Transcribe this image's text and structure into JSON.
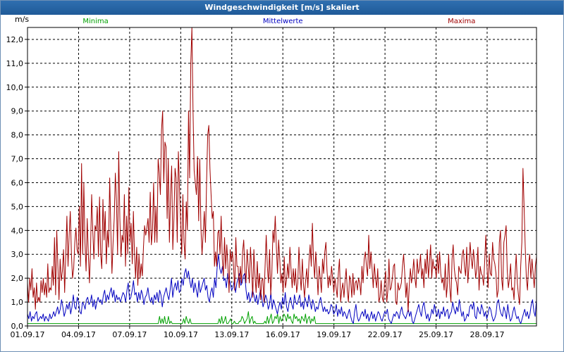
{
  "window": {
    "title": "Windgeschwindigkeit [m/s] skaliert"
  },
  "chart_data": {
    "type": "line",
    "title": "Windgeschwindigkeit [m/s] skaliert",
    "ylabel": "m/s",
    "xlabel": "",
    "ylim": [
      0,
      12.5
    ],
    "xlim_days": [
      0,
      29.9
    ],
    "grid": true,
    "y_ticks": [
      "0,0",
      "1,0",
      "2,0",
      "3,0",
      "4,0",
      "5,0",
      "6,0",
      "7,0",
      "8,0",
      "9,0",
      "10,0",
      "11,0",
      "12,0"
    ],
    "x_ticks": [
      "01.09.17",
      "04.09.17",
      "07.09.17",
      "10.09.17",
      "13.09.17",
      "16.09.17",
      "19.09.17",
      "22.09.17",
      "25.09.17",
      "28.09.17"
    ],
    "legend": [
      "Minima",
      "Mittelwerte",
      "Maxima"
    ],
    "legend_placement": "top",
    "colors": {
      "min": "#00a000",
      "avg": "#0000c0",
      "max": "#a00000"
    },
    "series": [
      {
        "name": "Maxima",
        "color": "#a00000",
        "values": [
          1.8,
          1.0,
          2.0,
          1.5,
          2.4,
          1.2,
          1.6,
          0.7,
          1.8,
          1.0,
          1.2,
          1.0,
          1.9,
          1.4,
          2.0,
          1.3,
          1.8,
          1.2,
          2.6,
          1.4,
          1.6,
          1.5,
          2.5,
          1.7,
          3.7,
          1.3,
          4.0,
          2.5,
          1.1,
          2.8,
          1.9,
          2.3,
          3.2,
          1.4,
          3.0,
          4.6,
          2.5,
          3.8,
          4.8,
          3.0,
          2.0,
          2.4,
          3.5,
          4.1,
          3.2,
          3.0,
          5.0,
          2.5,
          6.8,
          3.0,
          6.0,
          3.5,
          2.3,
          4.5,
          3.0,
          1.8,
          3.3,
          5.5,
          4.0,
          2.8,
          4.2,
          4.0,
          5.0,
          2.9,
          5.4,
          3.0,
          2.4,
          5.3,
          3.6,
          4.8,
          2.6,
          4.0,
          3.3,
          6.2,
          4.0,
          2.2,
          3.5,
          4.5,
          6.4,
          5.2,
          3.0,
          7.3,
          4.5,
          2.9,
          3.8,
          3.5,
          5.5,
          2.5,
          4.6,
          3.0,
          5.8,
          3.5,
          4.3,
          2.6,
          4.8,
          3.1,
          2.0,
          3.3,
          1.7,
          3.0,
          2.0,
          2.6,
          2.1,
          3.3,
          4.2,
          3.8,
          4.1,
          4.5,
          3.5,
          5.6,
          3.4,
          4.0,
          6.0,
          3.5,
          5.0,
          3.5,
          7.0,
          6.4,
          5.5,
          8.2,
          9.0,
          6.0,
          7.7,
          7.5,
          4.5,
          7.0,
          3.5,
          5.5,
          6.7,
          3.2,
          4.5,
          6.6,
          6.2,
          3.5,
          7.3,
          5.8,
          4.3,
          3.0,
          5.5,
          3.5,
          2.8,
          5.2,
          4.0,
          9.0,
          6.2,
          11.0,
          12.5,
          9.0,
          6.5,
          6.0,
          5.5,
          7.1,
          4.4,
          7.0,
          4.1,
          3.0,
          3.9,
          4.8,
          3.5,
          6.0,
          8.0,
          8.4,
          6.6,
          5.5,
          4.5,
          4.8,
          2.5,
          3.1,
          2.5,
          3.9,
          4.0,
          3.0,
          4.6,
          2.8,
          2.1,
          3.7,
          2.4,
          3.4,
          2.5,
          1.4,
          3.2,
          2.7,
          3.1,
          2.5,
          1.5,
          3.7,
          2.5,
          2.5,
          1.6,
          2.5,
          1.8,
          3.1,
          3.6,
          2.4,
          1.8,
          3.2,
          2.5,
          1.8,
          3.3,
          2.4,
          1.2,
          3.2,
          2.1,
          1.4,
          2.7,
          1.6,
          2.2,
          1.1,
          1.9,
          2.0,
          1.0,
          2.5,
          3.8,
          2.5,
          1.8,
          3.2,
          1.3,
          2.2,
          4.0,
          3.5,
          4.6,
          3.3,
          2.2,
          3.6,
          2.8,
          1.8,
          2.2,
          1.4,
          2.9,
          1.6,
          1.9,
          2.6,
          2.0,
          3.3,
          2.4,
          1.6,
          2.4,
          1.7,
          2.4,
          1.4,
          1.8,
          3.3,
          2.2,
          1.5,
          2.8,
          1.8,
          1.2,
          1.9,
          2.4,
          1.6,
          2.7,
          3.4,
          2.5,
          4.3,
          2.8,
          2.0,
          3.1,
          2.3,
          1.3,
          2.5,
          2.0,
          1.4,
          2.8,
          2.2,
          3.1,
          3.5,
          2.3,
          1.6,
          2.1,
          1.7,
          2.5,
          2.0,
          1.4,
          2.0,
          1.6,
          1.2,
          2.2,
          2.8,
          1.0,
          1.5,
          1.8,
          1.2,
          1.9,
          2.4,
          1.5,
          1.0,
          2.1,
          1.9,
          1.2,
          2.2,
          1.3,
          1.8,
          1.9,
          1.5,
          2.0,
          1.8,
          1.3,
          2.5,
          1.8,
          2.8,
          3.1,
          2.5,
          2.1,
          3.8,
          2.4,
          3.1,
          2.4,
          1.6,
          2.6,
          2.0,
          1.6,
          2.4,
          1.0,
          1.2,
          1.9,
          1.2,
          1.0,
          1.8,
          2.3,
          1.0,
          1.5,
          2.8,
          1.5,
          1.6,
          2.0,
          2.5,
          2.6,
          1.0,
          0.9,
          1.8,
          1.5,
          1.6,
          1.8,
          2.5,
          3.0,
          2.2,
          1.2,
          1.8,
          0.6,
          1.7,
          2.4,
          1.8,
          2.2,
          2.8,
          2.0,
          1.6,
          2.8,
          2.2,
          2.4,
          3.0,
          2.0,
          2.4,
          1.6,
          2.8,
          2.2,
          3.2,
          2.0,
          2.7,
          3.4,
          2.0,
          2.8,
          2.4,
          2.5,
          2.0,
          3.0,
          2.2,
          3.1,
          2.2,
          1.8,
          2.0,
          1.5,
          2.6,
          1.2,
          1.8,
          3.0,
          1.6,
          1.0,
          2.8,
          3.4,
          2.4,
          2.0,
          1.8,
          1.3,
          2.5,
          2.3,
          2.2,
          3.0,
          3.2,
          2.5,
          2.1,
          3.3,
          1.8,
          2.5,
          3.5,
          2.8,
          2.4,
          3.2,
          2.7,
          2.0,
          2.4,
          3.3,
          1.5,
          2.5,
          2.2,
          2.1,
          1.7,
          2.7,
          3.8,
          2.5,
          1.6,
          3.0,
          2.2,
          2.1,
          3.5,
          2.8,
          2.6,
          2.2,
          1.2,
          1.5,
          3.5,
          4.0,
          2.0,
          1.5,
          3.5,
          3.8,
          4.2,
          2.3,
          1.6,
          2.0,
          2.6,
          1.5,
          1.6,
          1.1,
          2.2,
          3.0,
          1.8,
          1.3,
          0.9,
          2.5,
          3.5,
          6.6,
          5.0,
          3.3,
          2.0,
          1.5,
          2.6,
          3.0,
          2.0,
          2.8,
          2.2,
          1.6,
          2.5,
          2.9
        ]
      },
      {
        "name": "Mittelwerte",
        "color": "#0000c0",
        "values": [
          0.5,
          0.3,
          0.6,
          0.2,
          0.4,
          0.3,
          0.5,
          0.6,
          0.2,
          0.3,
          0.4,
          0.3,
          0.5,
          0.2,
          0.4,
          0.3,
          0.2,
          0.5,
          0.3,
          0.4,
          0.6,
          0.4,
          0.6,
          0.8,
          0.5,
          0.7,
          1.1,
          0.8,
          0.4,
          0.6,
          0.9,
          0.7,
          1.0,
          0.5,
          0.8,
          1.3,
          0.8,
          0.7,
          1.2,
          1.0,
          0.6,
          0.5,
          1.0,
          0.9,
          0.7,
          1.1,
          1.2,
          0.9,
          1.0,
          1.3,
          0.8,
          1.1,
          0.7,
          1.0,
          1.2,
          1.0,
          1.1,
          0.9,
          1.3,
          1.5,
          1.0,
          1.3,
          1.1,
          1.4,
          1.6,
          1.2,
          1.5,
          1.0,
          1.3,
          1.1,
          1.2,
          1.0,
          1.2,
          1.4,
          1.3,
          1.0,
          1.5,
          1.8,
          1.1,
          1.2,
          1.5,
          1.9,
          1.3,
          1.4,
          1.0,
          1.4,
          1.1,
          1.5,
          1.3,
          0.9,
          1.2,
          1.3,
          1.6,
          1.2,
          1.0,
          1.2,
          0.9,
          1.3,
          1.1,
          1.4,
          1.0,
          1.5,
          1.3,
          0.8,
          1.2,
          1.4,
          1.6,
          1.3,
          1.1,
          1.5,
          2.0,
          1.2,
          1.6,
          1.8,
          1.5,
          1.9,
          1.4,
          1.5,
          2.0,
          1.7,
          2.2,
          2.4,
          2.0,
          2.3,
          1.9,
          1.6,
          2.0,
          1.4,
          1.8,
          1.5,
          1.2,
          1.9,
          1.4,
          1.6,
          1.8,
          2.0,
          1.5,
          1.7,
          1.2,
          1.0,
          1.4,
          1.6,
          1.2,
          2.0,
          1.6,
          2.5,
          3.0,
          2.4,
          2.2,
          2.5,
          1.9,
          2.0,
          1.6,
          2.2,
          2.0,
          1.8,
          1.5,
          1.6,
          1.9,
          1.4,
          1.8,
          2.0,
          2.2,
          1.7,
          1.8,
          2.1,
          2.2,
          1.5,
          1.1,
          1.4,
          1.0,
          1.2,
          1.5,
          1.3,
          1.0,
          1.3,
          0.9,
          1.2,
          1.5,
          1.2,
          0.8,
          1.0,
          1.3,
          1.1,
          0.7,
          0.9,
          1.4,
          0.7,
          1.1,
          0.9,
          0.7,
          0.5,
          0.8,
          1.0,
          0.7,
          1.2,
          0.9,
          1.4,
          0.8,
          0.6,
          1.0,
          1.2,
          0.9,
          0.7,
          1.3,
          1.0,
          0.9,
          1.1,
          1.3,
          0.8,
          1.0,
          0.7,
          1.2,
          1.0,
          0.8,
          1.3,
          1.0,
          0.7,
          1.1,
          0.9,
          0.6,
          0.8,
          0.7,
          1.0,
          1.2,
          0.9,
          0.6,
          0.8,
          0.6,
          0.7,
          0.5,
          0.6,
          0.9,
          0.8,
          0.5,
          0.6,
          0.9,
          0.4,
          0.7,
          0.5,
          0.8,
          0.4,
          0.6,
          0.5,
          0.3,
          0.5,
          0.7,
          0.4,
          0.2,
          0.1,
          0.6,
          0.9,
          0.4,
          0.2,
          0.3,
          0.5,
          0.6,
          0.4,
          0.7,
          0.3,
          0.5,
          0.2,
          0.4,
          0.6,
          0.3,
          0.5,
          0.2,
          0.4,
          0.6,
          0.5,
          0.3,
          0.2,
          0.4,
          0.6,
          0.5,
          0.7,
          0.3,
          0.2,
          0.1,
          0.3,
          0.5,
          0.4,
          0.6,
          0.5,
          0.3,
          0.6,
          0.8,
          0.5,
          0.4,
          0.3,
          0.5,
          0.7,
          0.4,
          0.6,
          0.2,
          0.1,
          0.3,
          0.5,
          0.7,
          0.9,
          0.6,
          0.4,
          0.8,
          1.0,
          0.6,
          0.3,
          0.5,
          0.2,
          0.4,
          0.7,
          0.5,
          0.9,
          0.6,
          0.4,
          0.7,
          0.3,
          0.6,
          0.5,
          0.8,
          0.4,
          0.6,
          0.7,
          0.3,
          0.5,
          0.6,
          1.0,
          0.7,
          0.5,
          0.8,
          0.6,
          1.1,
          0.7,
          0.4,
          0.6,
          0.2,
          0.3,
          0.5,
          0.4,
          0.8,
          0.9,
          0.7,
          1.0,
          0.4,
          0.3,
          0.8,
          0.6,
          0.5,
          0.9,
          0.7,
          0.4,
          0.6,
          0.3,
          0.5,
          0.8,
          0.7,
          0.4,
          0.2,
          0.3,
          0.5,
          1.0,
          1.1,
          0.7,
          0.5,
          0.4,
          0.8,
          0.6,
          0.3,
          0.9,
          0.5,
          0.2,
          0.3,
          0.6,
          0.8,
          0.5,
          0.3,
          0.4,
          0.2,
          0.1,
          0.3,
          0.5,
          0.7,
          0.4,
          0.6,
          0.3,
          0.5,
          0.9,
          1.1,
          0.6,
          0.4,
          1.1
        ]
      },
      {
        "name": "Minima",
        "color": "#00a000",
        "values": [
          0.1,
          0.1,
          0.1,
          0.1,
          0.1,
          0.1,
          0.1,
          0.1,
          0.1,
          0.1,
          0.1,
          0.1,
          0.1,
          0.1,
          0.1,
          0.1,
          0.1,
          0.1,
          0.1,
          0.1,
          0.1,
          0.1,
          0.1,
          0.1,
          0.1,
          0.1,
          0.1,
          0.1,
          0.1,
          0.1,
          0.1,
          0.1,
          0.1,
          0.1,
          0.1,
          0.1,
          0.1,
          0.1,
          0.1,
          0.1,
          0.1,
          0.1,
          0.1,
          0.1,
          0.1,
          0.1,
          0.1,
          0.1,
          0.1,
          0.1,
          0.1,
          0.1,
          0.1,
          0.1,
          0.1,
          0.1,
          0.1,
          0.1,
          0.1,
          0.1,
          0.1,
          0.1,
          0.1,
          0.1,
          0.1,
          0.1,
          0.1,
          0.1,
          0.1,
          0.1,
          0.1,
          0.1,
          0.1,
          0.1,
          0.1,
          0.1,
          0.1,
          0.1,
          0.1,
          0.1,
          0.1,
          0.1,
          0.1,
          0.1,
          0.1,
          0.1,
          0.1,
          0.1,
          0.1,
          0.1,
          0.1,
          0.1,
          0.1,
          0.1,
          0.1,
          0.1,
          0.1,
          0.1,
          0.1,
          0.1,
          0.1,
          0.1,
          0.1,
          0.1,
          0.4,
          0.1,
          0.3,
          0.1,
          0.4,
          0.1,
          0.1,
          0.4,
          0.1,
          0.2,
          0.1,
          0.1,
          0.1,
          0.1,
          0.1,
          0.1,
          0.1,
          0.1,
          0.1,
          0.3,
          0.1,
          0.4,
          0.2,
          0.1,
          0.3,
          0.1,
          0.1,
          0.1,
          0.1,
          0.1,
          0.1,
          0.1,
          0.1,
          0.1,
          0.1,
          0.1,
          0.1,
          0.1,
          0.1,
          0.1,
          0.1,
          0.1,
          0.1,
          0.1,
          0.1,
          0.1,
          0.1,
          0.3,
          0.1,
          0.4,
          0.1,
          0.2,
          0.4,
          0.1,
          0.1,
          0.2,
          0.3,
          0.1,
          0.1,
          0.2,
          0.1,
          0.1,
          0.1,
          0.2,
          0.2,
          0.4,
          0.3,
          0.1,
          0.2,
          0.3,
          0.6,
          0.1,
          0.3,
          0.4,
          0.1,
          0.2,
          0.1,
          0.1,
          0.1,
          0.1,
          0.1,
          0.1,
          0.1,
          0.2,
          0.1,
          0.4,
          0.1,
          0.3,
          0.5,
          0.1,
          0.2,
          0.4,
          0.3,
          0.5,
          0.1,
          0.4,
          0.2,
          0.3,
          0.5,
          0.4,
          0.2,
          0.5,
          0.3,
          0.4,
          0.2,
          0.1,
          0.5,
          0.3,
          0.4,
          0.2,
          0.3,
          0.1,
          0.4,
          0.3,
          0.2,
          0.5,
          0.1,
          0.3,
          0.4,
          0.1,
          0.3,
          0.2,
          0.4,
          0.1,
          0.1,
          0.1,
          0.1,
          0.1,
          0.1,
          0.1,
          0.1,
          0.1,
          0.1,
          0.1,
          0.1,
          0.1,
          0.1,
          0.1,
          0.1,
          0.1,
          0.1,
          0.1,
          0.1,
          0.1,
          0.1,
          0.1,
          0.1,
          0.1,
          0.1,
          0.1,
          0.1,
          0.1,
          0.1,
          0.1,
          0.1,
          0.1,
          0.1,
          0.1,
          0.1,
          0.1,
          0.1,
          0.1,
          0.1,
          0.1,
          0.1,
          0.1,
          0.1,
          0.1,
          0.1,
          0.1,
          0.1,
          0.1,
          0.1,
          0.1,
          0.1,
          0.1,
          0.1,
          0.1,
          0.1,
          0.1,
          0.1,
          0.1,
          0.1,
          0.1,
          0.1,
          0.1,
          0.1,
          0.1,
          0.1,
          0.1,
          0.1,
          0.1,
          0.1,
          0.1,
          0.1,
          0.1,
          0.1,
          0.1,
          0.1,
          0.1,
          0.1,
          0.1,
          0.1,
          0.1,
          0.1,
          0.1,
          0.1,
          0.1,
          0.1,
          0.1,
          0.1,
          0.1,
          0.1,
          0.1,
          0.1,
          0.1,
          0.1,
          0.1,
          0.1,
          0.1,
          0.1,
          0.1,
          0.1,
          0.1,
          0.1,
          0.1,
          0.1,
          0.1,
          0.1,
          0.1,
          0.1,
          0.1,
          0.1,
          0.1,
          0.1,
          0.1,
          0.1,
          0.1,
          0.1,
          0.1,
          0.1,
          0.1,
          0.1,
          0.1,
          0.1,
          0.1,
          0.1,
          0.1,
          0.1,
          0.1,
          0.1,
          0.1,
          0.1,
          0.1,
          0.1,
          0.1,
          0.1,
          0.1,
          0.1,
          0.1,
          0.1,
          0.1,
          0.1,
          0.1,
          0.1,
          0.1,
          0.1,
          0.1,
          0.1,
          0.1,
          0.1,
          0.1,
          0.1,
          0.1,
          0.1,
          0.1,
          0.1,
          0.1,
          0.1,
          0.1,
          0.1,
          0.1,
          0.1,
          0.1,
          0.1,
          0.1,
          0.1,
          0.1,
          0.1,
          0.1,
          0.1,
          0.1,
          0.1,
          0.1,
          0.1,
          0.1,
          0.1,
          0.1
        ]
      }
    ]
  }
}
